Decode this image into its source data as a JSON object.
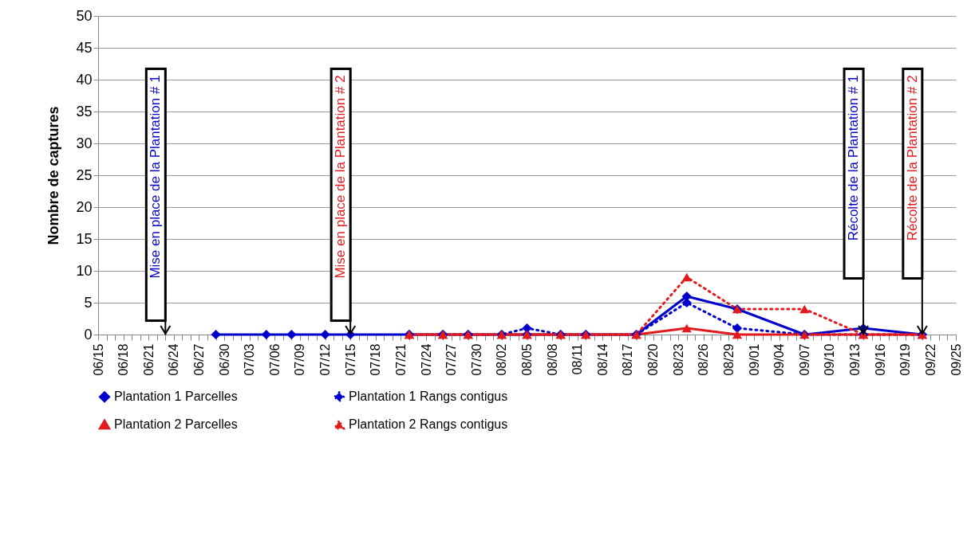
{
  "chart_data": {
    "type": "line",
    "ylabel": "Nombre de captures",
    "ylim": [
      0,
      50
    ],
    "yticks": [
      0,
      5,
      10,
      15,
      20,
      25,
      30,
      35,
      40,
      45,
      50
    ],
    "xlim": [
      "--06-15",
      "--09-25"
    ],
    "xticks": [
      {
        "value": "--06-15",
        "label": "06/15"
      },
      {
        "value": "--06-16",
        "label": null
      },
      {
        "value": "--06-17",
        "label": null
      },
      {
        "value": "--06-18",
        "label": "06/18"
      },
      {
        "value": "--06-19",
        "label": null
      },
      {
        "value": "--06-20",
        "label": null
      },
      {
        "value": "--06-21",
        "label": "06/21"
      },
      {
        "value": "--06-22",
        "label": null
      },
      {
        "value": "--06-23",
        "label": null
      },
      {
        "value": "--06-24",
        "label": "06/24"
      },
      {
        "value": "--06-25",
        "label": null
      },
      {
        "value": "--06-26",
        "label": null
      },
      {
        "value": "--06-27",
        "label": "06/27"
      },
      {
        "value": "--06-28",
        "label": null
      },
      {
        "value": "--06-29",
        "label": null
      },
      {
        "value": "--06-30",
        "label": "06/30"
      },
      {
        "value": "--07-01",
        "label": null
      },
      {
        "value": "--07-02",
        "label": null
      },
      {
        "value": "--07-03",
        "label": "07/03"
      },
      {
        "value": "--07-04",
        "label": null
      },
      {
        "value": "--07-05",
        "label": null
      },
      {
        "value": "--07-06",
        "label": "07/06"
      },
      {
        "value": "--07-07",
        "label": null
      },
      {
        "value": "--07-08",
        "label": null
      },
      {
        "value": "--07-09",
        "label": "07/09"
      },
      {
        "value": "--07-10",
        "label": null
      },
      {
        "value": "--07-11",
        "label": null
      },
      {
        "value": "--07-12",
        "label": "07/12"
      },
      {
        "value": "--07-13",
        "label": null
      },
      {
        "value": "--07-14",
        "label": null
      },
      {
        "value": "--07-15",
        "label": "07/15"
      },
      {
        "value": "--07-16",
        "label": null
      },
      {
        "value": "--07-17",
        "label": null
      },
      {
        "value": "--07-18",
        "label": "07/18"
      },
      {
        "value": "--07-19",
        "label": null
      },
      {
        "value": "--07-20",
        "label": null
      },
      {
        "value": "--07-21",
        "label": "07/21"
      },
      {
        "value": "--07-22",
        "label": null
      },
      {
        "value": "--07-23",
        "label": null
      },
      {
        "value": "--07-24",
        "label": "07/24"
      },
      {
        "value": "--07-25",
        "label": null
      },
      {
        "value": "--07-26",
        "label": null
      },
      {
        "value": "--07-27",
        "label": "07/27"
      },
      {
        "value": "--07-28",
        "label": null
      },
      {
        "value": "--07-29",
        "label": null
      },
      {
        "value": "--07-30",
        "label": "07/30"
      },
      {
        "value": "--07-31",
        "label": null
      },
      {
        "value": "--08-01",
        "label": null
      },
      {
        "value": "--08-02",
        "label": "08/02"
      },
      {
        "value": "--08-03",
        "label": null
      },
      {
        "value": "--08-04",
        "label": null
      },
      {
        "value": "--08-05",
        "label": "08/05"
      },
      {
        "value": "--08-06",
        "label": null
      },
      {
        "value": "--08-07",
        "label": null
      },
      {
        "value": "--08-08",
        "label": "08/08"
      },
      {
        "value": "--08-09",
        "label": null
      },
      {
        "value": "--08-10",
        "label": null
      },
      {
        "value": "--08-11",
        "label": "08/11"
      },
      {
        "value": "--08-12",
        "label": null
      },
      {
        "value": "--08-13",
        "label": null
      },
      {
        "value": "--08-14",
        "label": "08/14"
      },
      {
        "value": "--08-15",
        "label": null
      },
      {
        "value": "--08-16",
        "label": null
      },
      {
        "value": "--08-17",
        "label": "08/17"
      },
      {
        "value": "--08-18",
        "label": null
      },
      {
        "value": "--08-19",
        "label": null
      },
      {
        "value": "--08-20",
        "label": "08/20"
      },
      {
        "value": "--08-21",
        "label": null
      },
      {
        "value": "--08-22",
        "label": null
      },
      {
        "value": "--08-23",
        "label": "08/23"
      },
      {
        "value": "--08-24",
        "label": null
      },
      {
        "value": "--08-25",
        "label": null
      },
      {
        "value": "--08-26",
        "label": "08/26"
      },
      {
        "value": "--08-27",
        "label": null
      },
      {
        "value": "--08-28",
        "label": null
      },
      {
        "value": "--08-29",
        "label": "08/29"
      },
      {
        "value": "--08-30",
        "label": null
      },
      {
        "value": "--08-31",
        "label": null
      },
      {
        "value": "--09-01",
        "label": "09/01"
      },
      {
        "value": "--09-02",
        "label": null
      },
      {
        "value": "--09-03",
        "label": null
      },
      {
        "value": "--09-04",
        "label": "09/04"
      },
      {
        "value": "--09-05",
        "label": null
      },
      {
        "value": "--09-06",
        "label": null
      },
      {
        "value": "--09-07",
        "label": "09/07"
      },
      {
        "value": "--09-08",
        "label": null
      },
      {
        "value": "--09-09",
        "label": null
      },
      {
        "value": "--09-10",
        "label": "09/10"
      },
      {
        "value": "--09-11",
        "label": null
      },
      {
        "value": "--09-12",
        "label": null
      },
      {
        "value": "--09-13",
        "label": "09/13"
      },
      {
        "value": "--09-14",
        "label": null
      },
      {
        "value": "--09-15",
        "label": null
      },
      {
        "value": "--09-16",
        "label": "09/16"
      },
      {
        "value": "--09-17",
        "label": null
      },
      {
        "value": "--09-18",
        "label": null
      },
      {
        "value": "--09-19",
        "label": "09/19"
      },
      {
        "value": "--09-20",
        "label": null
      },
      {
        "value": "--09-21",
        "label": null
      },
      {
        "value": "--09-22",
        "label": "09/22"
      },
      {
        "value": "--09-23",
        "label": null
      },
      {
        "value": "--09-24",
        "label": null
      },
      {
        "value": "--09-25",
        "label": "09/25"
      }
    ],
    "grid": "y",
    "legend": "bottom",
    "series": [
      {
        "name": "Plantation 1  Parcelles",
        "color": "#0000cc",
        "marker": "diamond",
        "line_style": "solid",
        "x": [
          "--06-29",
          "--07-05",
          "--07-08",
          "--07-12",
          "--07-15",
          "--07-22",
          "--07-26",
          "--07-29",
          "--08-02",
          "--08-05",
          "--08-09",
          "--08-12",
          "--08-18",
          "--08-24",
          "--08-30",
          "--09-07",
          "--09-14",
          "--09-21"
        ],
        "values": [
          0,
          0,
          0,
          0,
          0,
          0,
          0,
          0,
          0,
          0,
          0,
          0,
          0,
          6,
          4,
          0,
          1,
          0
        ]
      },
      {
        "name": "Plantation 1  Rangs contigus",
        "color": "#0000cc",
        "marker": "diamond",
        "line_style": "dotted",
        "x": [
          "--07-22",
          "--07-26",
          "--07-29",
          "--08-02",
          "--08-05",
          "--08-09",
          "--08-12",
          "--08-18",
          "--08-24",
          "--08-30",
          "--09-07",
          "--09-14",
          "--09-21"
        ],
        "values": [
          0,
          0,
          0,
          0,
          1,
          0,
          0,
          0,
          5,
          1,
          0,
          0,
          0
        ]
      },
      {
        "name": "Plantation 2  Parcelles",
        "color": "#e31a1c",
        "marker": "triangle",
        "line_style": "solid",
        "x": [
          "--07-22",
          "--07-26",
          "--07-29",
          "--08-02",
          "--08-05",
          "--08-09",
          "--08-12",
          "--08-18",
          "--08-24",
          "--08-30",
          "--09-07",
          "--09-14",
          "--09-21"
        ],
        "values": [
          0,
          0,
          0,
          0,
          0,
          0,
          0,
          0,
          1,
          0,
          0,
          0,
          0
        ]
      },
      {
        "name": "Plantation 2  Rangs contigus",
        "color": "#e31a1c",
        "marker": "triangle",
        "line_style": "dotted",
        "x": [
          "--07-22",
          "--07-26",
          "--07-29",
          "--08-02",
          "--08-05",
          "--08-09",
          "--08-12",
          "--08-18",
          "--08-24",
          "--08-30",
          "--09-07",
          "--09-14",
          "--09-21"
        ],
        "values": [
          0,
          0,
          0,
          0,
          0,
          0,
          0,
          0,
          9,
          4,
          4,
          0,
          0
        ]
      }
    ],
    "ref_lines": [
      {
        "axis": "x",
        "value": "--06-23",
        "label": "Mise en place de la Plantation # 1",
        "color": "#000000"
      },
      {
        "axis": "x",
        "value": "--07-15",
        "label": "Mise en place de la Plantation # 2",
        "color": "#000000"
      },
      {
        "axis": "x",
        "value": "--09-14",
        "label": "Récolte de la Plantation # 1",
        "color": "#000000"
      },
      {
        "axis": "x",
        "value": "--09-21",
        "label": "Récolte de la Plantation # 2",
        "color": "#000000"
      }
    ]
  }
}
